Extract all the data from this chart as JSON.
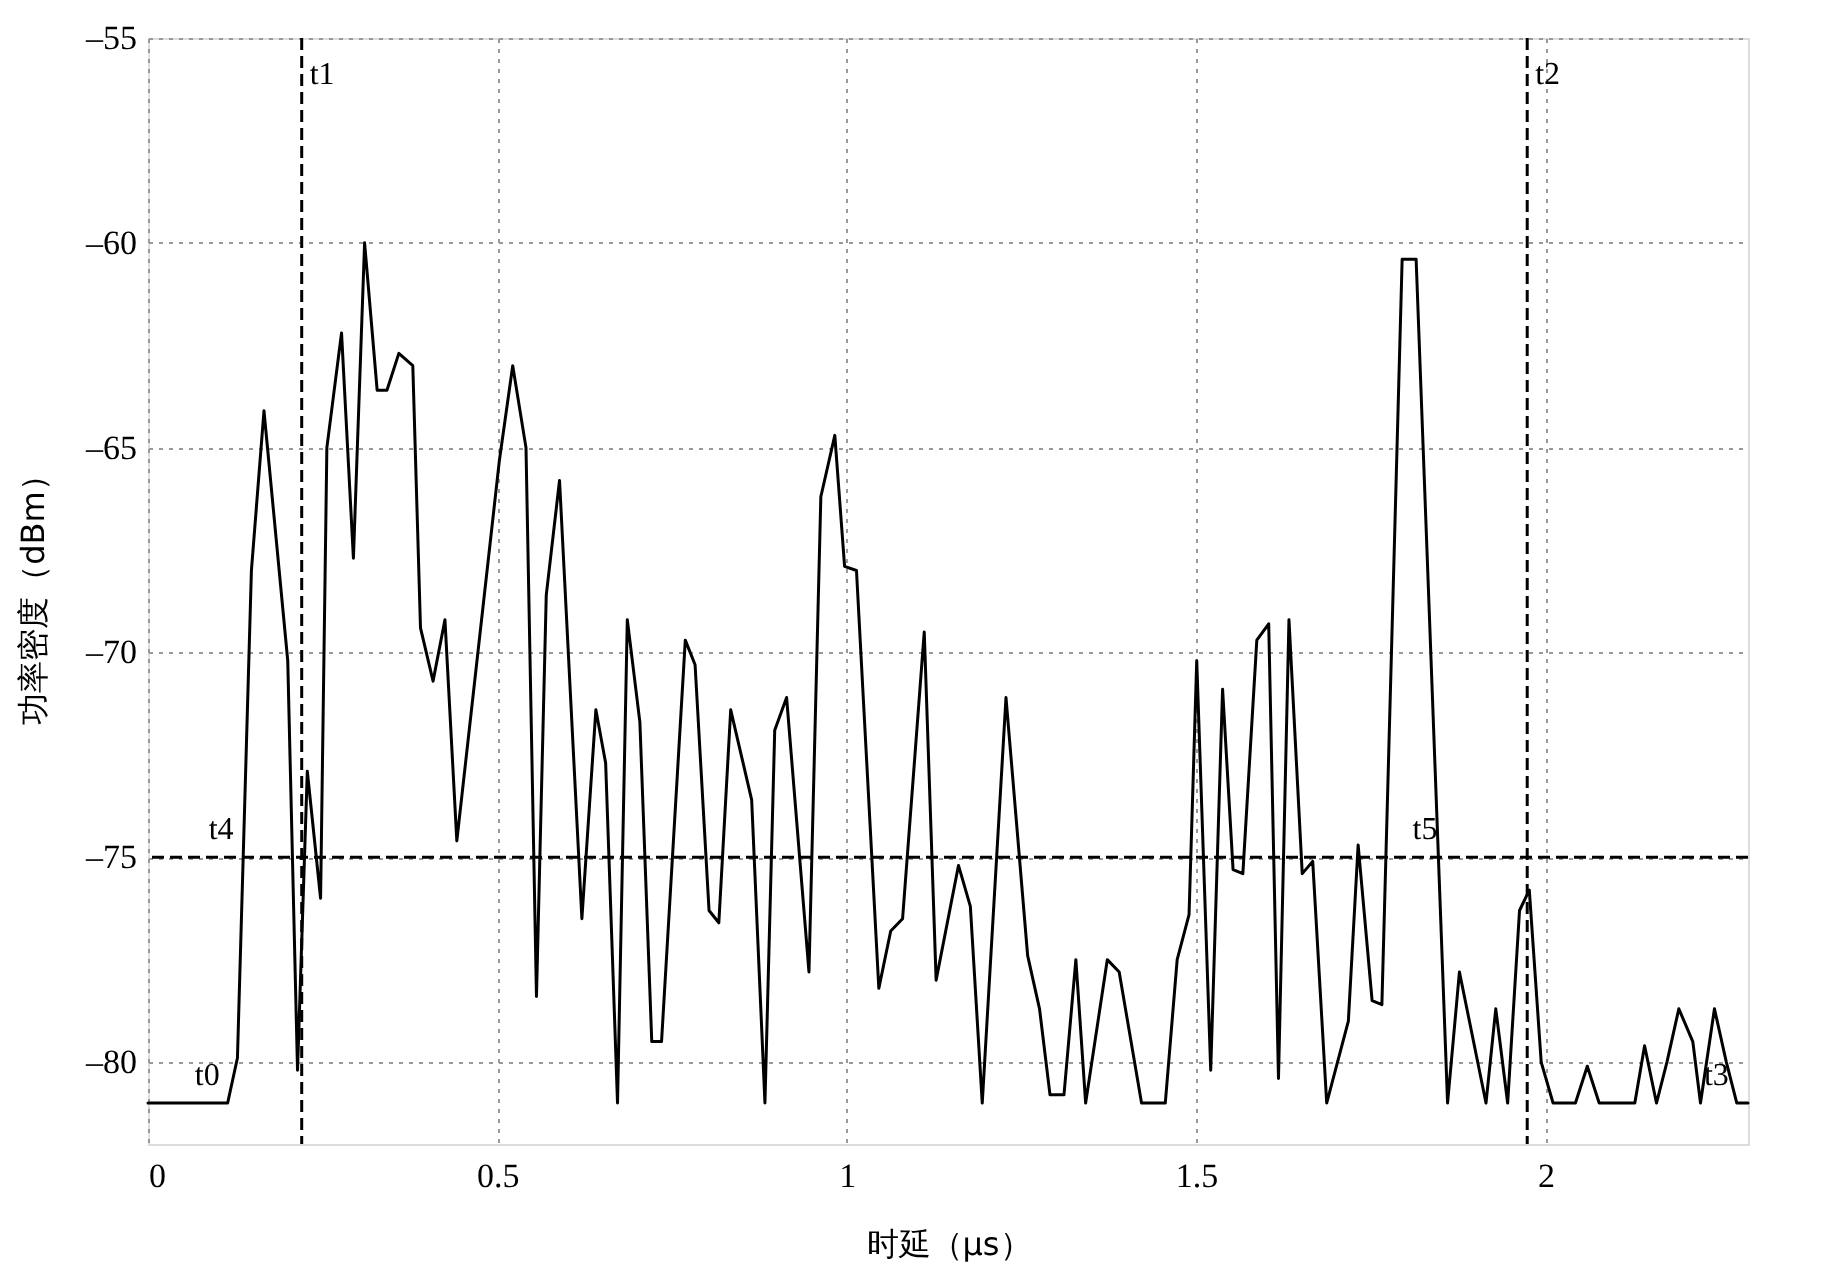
{
  "chart_data": {
    "type": "line",
    "xlabel": "时延（μs）",
    "ylabel": "功率密度（dBm）",
    "x": [
      0,
      0.114,
      0.128,
      0.148,
      0.166,
      0.2,
      0.214,
      0.228,
      0.247,
      0.256,
      0.277,
      0.294,
      0.31,
      0.328,
      0.342,
      0.359,
      0.379,
      0.39,
      0.408,
      0.425,
      0.442,
      0.503,
      0.522,
      0.541,
      0.556,
      0.57,
      0.589,
      0.621,
      0.641,
      0.655,
      0.672,
      0.686,
      0.704,
      0.721,
      0.735,
      0.769,
      0.783,
      0.803,
      0.817,
      0.834,
      0.864,
      0.883,
      0.897,
      0.914,
      0.946,
      0.963,
      0.983,
      0.997,
      1.014,
      1.046,
      1.063,
      1.08,
      1.111,
      1.128,
      1.16,
      1.177,
      1.194,
      1.228,
      1.259,
      1.276,
      1.291,
      1.311,
      1.328,
      1.342,
      1.373,
      1.39,
      1.422,
      1.456,
      1.473,
      1.49,
      1.501,
      1.521,
      1.538,
      1.553,
      1.567,
      1.587,
      1.604,
      1.618,
      1.633,
      1.652,
      1.667,
      1.687,
      1.718,
      1.732,
      1.752,
      1.766,
      1.795,
      1.815,
      1.86,
      1.877,
      1.915,
      1.929,
      1.946,
      1.963,
      1.977,
      1.994,
      2.011,
      2.043,
      2.06,
      2.077,
      2.128,
      2.142,
      2.159,
      2.174,
      2.191,
      2.211,
      2.222,
      2.242,
      2.259,
      2.274,
      2.29
    ],
    "series": [
      {
        "color": "#000000",
        "values": [
          -81,
          -81,
          -79.9,
          -68,
          -64.1,
          -70.2,
          -80.2,
          -72.9,
          -76,
          -65,
          -62.2,
          -67.7,
          -60,
          -63.6,
          -63.6,
          -62.7,
          -63,
          -69.4,
          -70.7,
          -69.2,
          -74.6,
          -65.3,
          -63,
          -65,
          -78.4,
          -68.6,
          -65.8,
          -76.5,
          -71.4,
          -72.7,
          -81,
          -69.2,
          -71.7,
          -79.5,
          -79.5,
          -69.7,
          -70.3,
          -76.3,
          -76.6,
          -71.4,
          -73.6,
          -81,
          -71.9,
          -71.1,
          -77.8,
          -66.2,
          -64.7,
          -67.9,
          -68,
          -78.2,
          -76.8,
          -76.5,
          -69.5,
          -78,
          -75.2,
          -76.2,
          -81,
          -71.1,
          -77.4,
          -78.7,
          -80.8,
          -80.8,
          -77.5,
          -81,
          -77.5,
          -77.8,
          -81,
          -81,
          -77.5,
          -76.4,
          -70.2,
          -80.2,
          -70.9,
          -75.3,
          -75.4,
          -69.7,
          -69.3,
          -80.4,
          -69.2,
          -75.4,
          -75.1,
          -81,
          -79,
          -74.7,
          -78.5,
          -78.6,
          -60.4,
          -60.4,
          -81,
          -77.8,
          -81,
          -78.7,
          -81,
          -76.3,
          -75.8,
          -80,
          -81,
          -81,
          -80.1,
          -81,
          -81,
          -79.6,
          -81,
          -80,
          -78.7,
          -79.5,
          -81,
          -78.7,
          -80,
          -81,
          -81
        ]
      }
    ],
    "xlim": [
      0,
      2.29
    ],
    "xticks": [
      0,
      0.5,
      1,
      1.5,
      2
    ],
    "ylim": [
      -82,
      -55
    ],
    "yticks": [
      {
        "value": -55,
        "label": "–55"
      },
      {
        "value": -60,
        "label": "–60"
      },
      {
        "value": -65,
        "label": "–65"
      },
      {
        "value": -70,
        "label": "–70"
      },
      {
        "value": -75,
        "label": "–75"
      },
      {
        "value": -80,
        "label": "–80"
      }
    ],
    "ref_lines": [
      {
        "axis": "x",
        "value": 0.22,
        "label": "t1",
        "line_style": "dashed"
      },
      {
        "axis": "x",
        "value": 1.974,
        "label": "t2",
        "line_style": "dashed"
      },
      {
        "axis": "y",
        "value": -75,
        "line_style": "dashed"
      }
    ],
    "annotations": [
      {
        "text": "t0",
        "x": 0.114,
        "y": -81
      },
      {
        "text": "t3",
        "x": 2.274,
        "y": -81
      },
      {
        "text": "t4",
        "x": 0.134,
        "y": -75
      },
      {
        "text": "t5",
        "x": 1.857,
        "y": -75
      }
    ],
    "grid": true,
    "line_style": "solid",
    "marker": "none"
  }
}
